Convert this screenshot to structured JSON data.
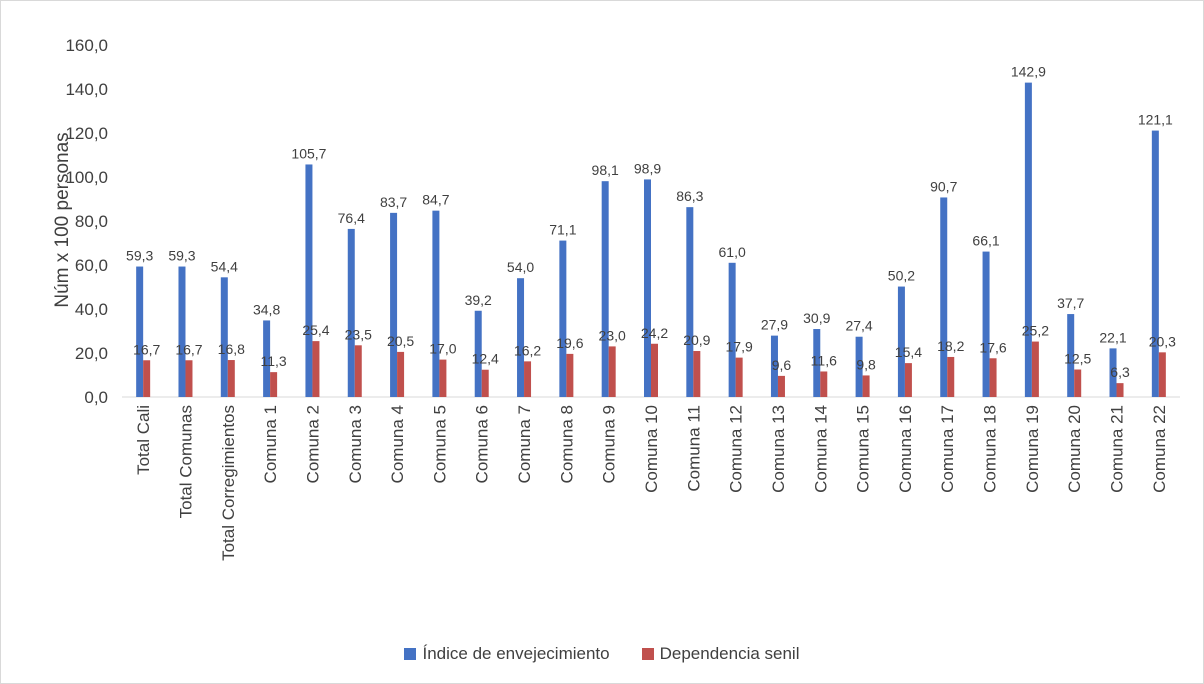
{
  "chart_data": {
    "type": "bar",
    "ylabel": "Núm x 100 personas",
    "ylim": [
      0,
      160
    ],
    "ytick_step": 20,
    "ytick_labels": [
      "0,0",
      "20,0",
      "40,0",
      "60,0",
      "80,0",
      "100,0",
      "120,0",
      "140,0",
      "160,0"
    ],
    "grid": false,
    "legend_position": "bottom",
    "categories": [
      "Total Cali",
      "Total Comunas",
      "Total Corregimientos",
      "Comuna 1",
      "Comuna 2",
      "Comuna 3",
      "Comuna 4",
      "Comuna 5",
      "Comuna 6",
      "Comuna 7",
      "Comuna 8",
      "Comuna 9",
      "Comuna 10",
      "Comuna 11",
      "Comuna 12",
      "Comuna 13",
      "Comuna 14",
      "Comuna 15",
      "Comuna 16",
      "Comuna 17",
      "Comuna 18",
      "Comuna 19",
      "Comuna 20",
      "Comuna 21",
      "Comuna 22"
    ],
    "series": [
      {
        "name": "Índice de envejecimiento",
        "color": "#4472c4",
        "values": [
          59.3,
          59.3,
          54.4,
          34.8,
          105.7,
          76.4,
          83.7,
          84.7,
          39.2,
          54.0,
          71.1,
          98.1,
          98.9,
          86.3,
          61.0,
          27.9,
          30.9,
          27.4,
          50.2,
          90.7,
          66.1,
          142.9,
          37.7,
          22.1,
          121.1
        ],
        "labels": [
          "59,3",
          "59,3",
          "54,4",
          "34,8",
          "105,7",
          "76,4",
          "83,7",
          "84,7",
          "39,2",
          "54,0",
          "71,1",
          "98,1",
          "98,9",
          "86,3",
          "61,0",
          "27,9",
          "30,9",
          "27,4",
          "50,2",
          "90,7",
          "66,1",
          "142,9",
          "37,7",
          "22,1",
          "121,1"
        ]
      },
      {
        "name": "Dependencia senil",
        "color": "#c0504d",
        "values": [
          16.7,
          16.7,
          16.8,
          11.3,
          25.4,
          23.5,
          20.5,
          17.0,
          12.4,
          16.2,
          19.6,
          23.0,
          24.2,
          20.9,
          17.9,
          9.6,
          11.6,
          9.8,
          15.4,
          18.2,
          17.6,
          25.2,
          12.5,
          6.3,
          20.3
        ],
        "labels": [
          "16,7",
          "16,7",
          "16,8",
          "11,3",
          "25,4",
          "23,5",
          "20,5",
          "17,0",
          "12,4",
          "16,2",
          "19,6",
          "23,0",
          "24,2",
          "20,9",
          "17,9",
          "9,6",
          "11,6",
          "9,8",
          "15,4",
          "18,2",
          "17,6",
          "25,2",
          "12,5",
          "6,3",
          "20,3"
        ]
      }
    ]
  }
}
